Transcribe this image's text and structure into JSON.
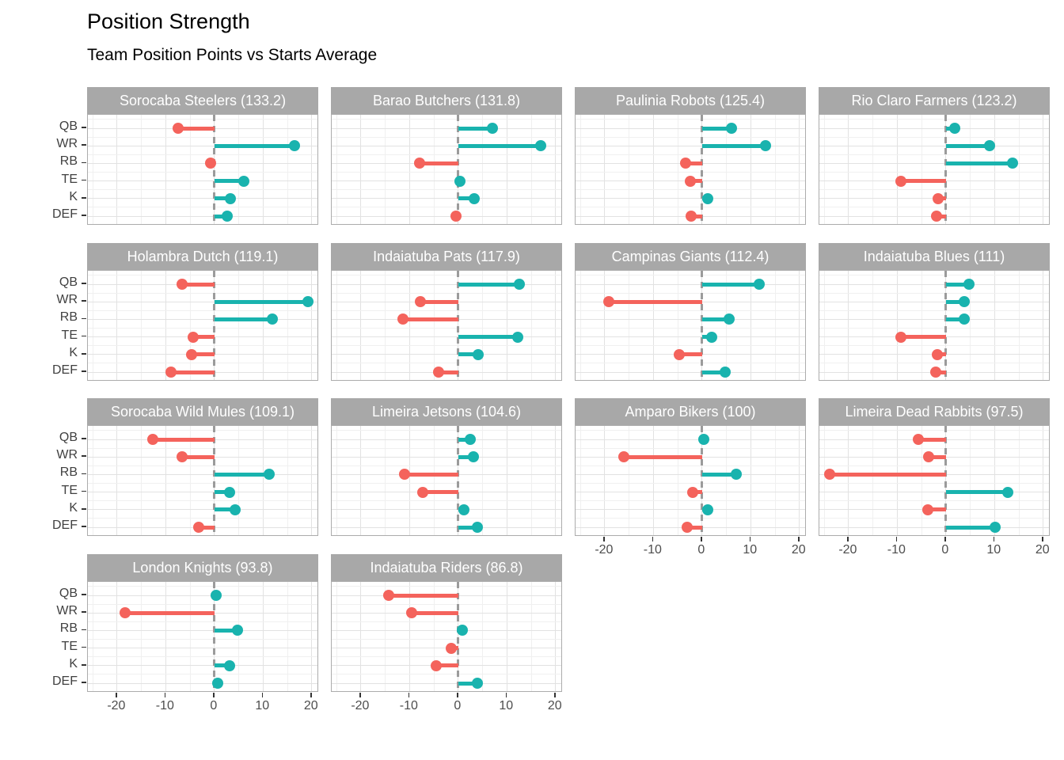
{
  "chart_data": {
    "type": "bar",
    "style": "horizontal lollipop, faceted small multiples (4 columns)",
    "title": "Position Strength",
    "subtitle": "Team Position Points vs Starts Average",
    "categories": [
      "QB",
      "WR",
      "RB",
      "TE",
      "K",
      "DEF"
    ],
    "x_ticks": [
      -20,
      -10,
      0,
      10,
      20
    ],
    "xlim": [
      -26,
      21.5
    ],
    "grid": "on",
    "legend": "none",
    "zero_reference_line": "dashed vertical at 0",
    "colors": {
      "positive": "#19B3AE",
      "negative": "#F4635C",
      "strip_bg": "#A8A8A8",
      "strip_text": "#FFFFFF",
      "grid_major": "#E2E2E2",
      "grid_minor": "#F0F0F0",
      "panel_border": "#ACACAC",
      "zero_line": "#9B9B9B",
      "axis_text": "#4D4D4D"
    },
    "facets": [
      {
        "name": "Sorocaba Steelers",
        "total": 133.2,
        "values": [
          -7.4,
          16.5,
          -0.8,
          6.1,
          3.2,
          2.7
        ]
      },
      {
        "name": "Barao Butchers",
        "total": 131.8,
        "values": [
          7.1,
          17.0,
          -7.9,
          0.3,
          3.2,
          -0.4
        ]
      },
      {
        "name": "Paulinia Robots",
        "total": 125.4,
        "values": [
          6.1,
          13.0,
          -3.4,
          -2.4,
          1.2,
          -2.2
        ]
      },
      {
        "name": "Rio Claro Farmers",
        "total": 123.2,
        "values": [
          1.8,
          8.9,
          13.7,
          -9.2,
          -1.6,
          -2.0
        ]
      },
      {
        "name": "Holambra Dutch",
        "total": 119.1,
        "values": [
          -6.6,
          19.2,
          11.9,
          -4.3,
          -4.7,
          -9.0
        ]
      },
      {
        "name": "Indaiatuba Pats",
        "total": 117.9,
        "values": [
          12.6,
          -7.8,
          -11.3,
          12.2,
          4.1,
          -4.0
        ]
      },
      {
        "name": "Campinas Giants",
        "total": 112.4,
        "values": [
          11.8,
          -19.2,
          5.5,
          2.0,
          -4.7,
          4.8
        ]
      },
      {
        "name": "Indaiatuba Blues",
        "total": 111,
        "values": [
          4.8,
          3.7,
          3.8,
          -9.2,
          -1.7,
          -2.1
        ]
      },
      {
        "name": "Sorocaba Wild Mules",
        "total": 109.1,
        "values": [
          -12.6,
          -6.6,
          11.3,
          3.1,
          4.2,
          -3.2
        ]
      },
      {
        "name": "Limeira Jetsons",
        "total": 104.6,
        "values": [
          2.4,
          3.1,
          -11.1,
          -7.3,
          1.2,
          3.9
        ]
      },
      {
        "name": "Amparo Bikers",
        "total": 100,
        "values": [
          0.3,
          -16.1,
          7.0,
          -1.9,
          1.1,
          -3.1
        ]
      },
      {
        "name": "Limeira Dead Rabbits",
        "total": 97.5,
        "values": [
          -5.6,
          -3.5,
          -23.9,
          12.7,
          -3.7,
          10.1
        ]
      },
      {
        "name": "London Knights",
        "total": 93.8,
        "values": [
          0.4,
          -18.4,
          4.7,
          null,
          3.1,
          0.6
        ]
      },
      {
        "name": "Indaiatuba Riders",
        "total": 86.8,
        "values": [
          -14.3,
          -9.5,
          0.8,
          -1.5,
          -4.6,
          3.9
        ]
      }
    ]
  }
}
